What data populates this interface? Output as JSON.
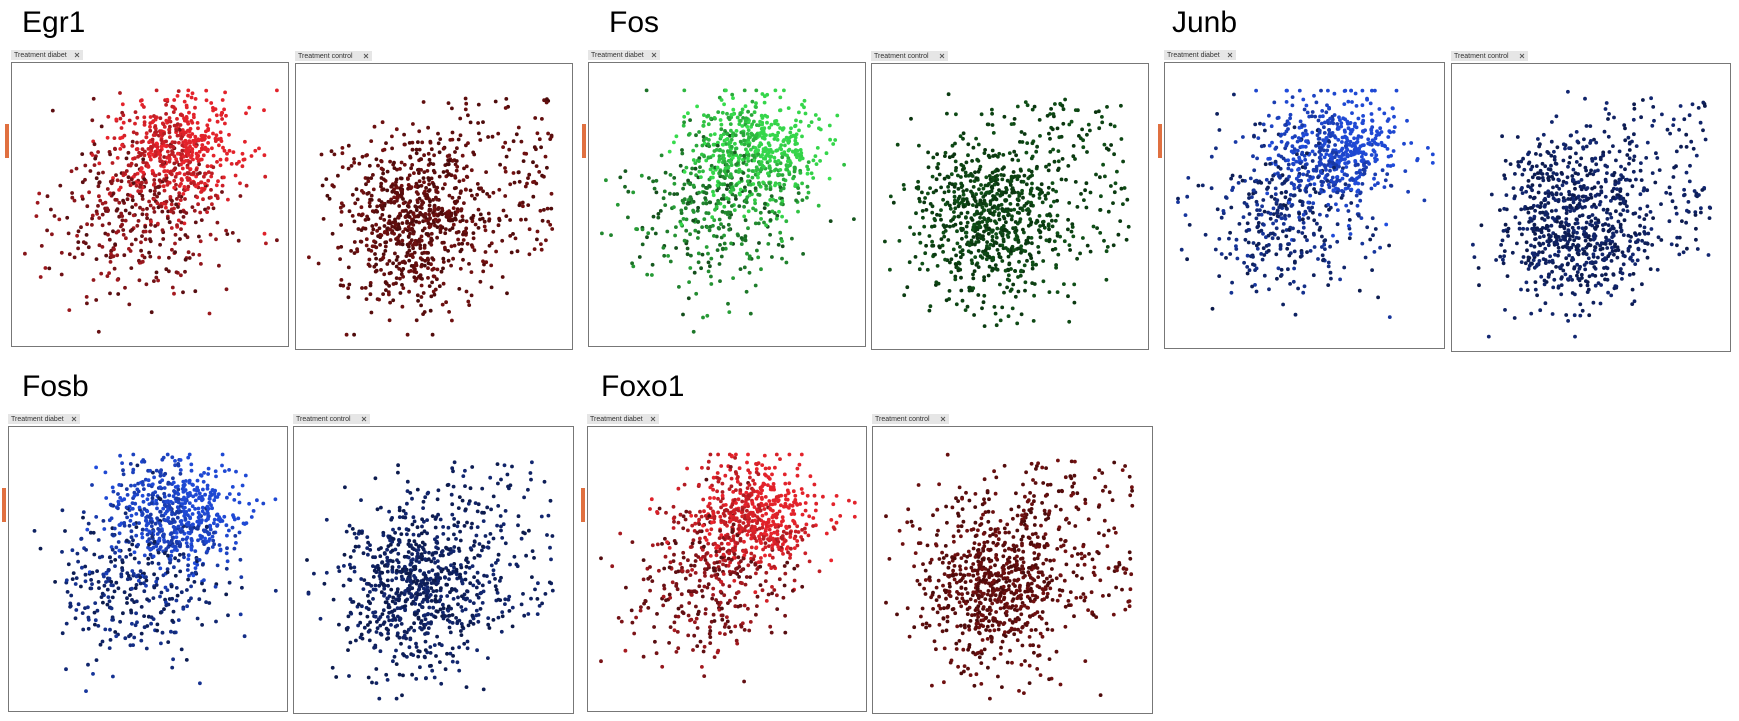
{
  "groups": [
    {
      "title": "Egr1",
      "panels": [
        {
          "tab": "Treatment diabet",
          "color": "#e3232b"
        },
        {
          "tab": "Treatment control",
          "color": "#5a0d0d"
        }
      ]
    },
    {
      "title": "Fos",
      "panels": [
        {
          "tab": "Treatment diabet",
          "color": "#35d64a"
        },
        {
          "tab": "Treatment control",
          "color": "#0c3f12"
        }
      ]
    },
    {
      "title": "Junb",
      "panels": [
        {
          "tab": "Treatment diabet",
          "color": "#1f49d4"
        },
        {
          "tab": "Treatment control",
          "color": "#0e1f5a"
        }
      ]
    },
    {
      "title": "Fosb",
      "panels": [
        {
          "tab": "Treatment diabet",
          "color": "#1f49d4"
        },
        {
          "tab": "Treatment control",
          "color": "#0e1f5a"
        }
      ]
    },
    {
      "title": "Foxo1",
      "panels": [
        {
          "tab": "Treatment diabet",
          "color": "#e3232b"
        },
        {
          "tab": "Treatment control",
          "color": "#5a0d0d"
        }
      ]
    }
  ]
}
